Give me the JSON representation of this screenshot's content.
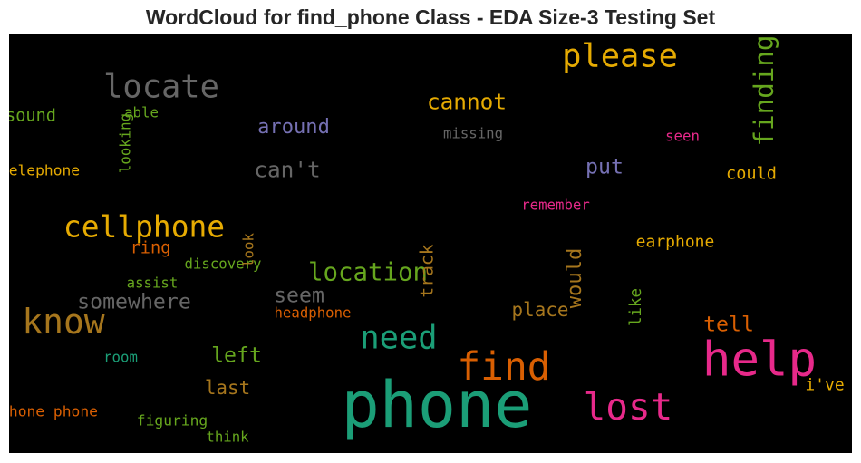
{
  "figure": {
    "title": "WordCloud for find_phone Class - EDA Size-3 Testing Set"
  },
  "chart_data": {
    "type": "wordcloud",
    "title": "WordCloud for find_phone Class - EDA Size-3 Testing Set",
    "background": "#000000",
    "words": [
      {
        "text": "phone",
        "weight": 1.0,
        "color": "#1b9e77",
        "rotated": false
      },
      {
        "text": "help",
        "weight": 0.73,
        "color": "#e7298a",
        "rotated": false
      },
      {
        "text": "find",
        "weight": 0.58,
        "color": "#d95f02",
        "rotated": false
      },
      {
        "text": "lost",
        "weight": 0.55,
        "color": "#e7298a",
        "rotated": false
      },
      {
        "text": "know",
        "weight": 0.5,
        "color": "#a6761d",
        "rotated": false
      },
      {
        "text": "need",
        "weight": 0.46,
        "color": "#1b9e77",
        "rotated": false
      },
      {
        "text": "locate",
        "weight": 0.46,
        "color": "#666666",
        "rotated": false
      },
      {
        "text": "please",
        "weight": 0.46,
        "color": "#e6ab02",
        "rotated": false
      },
      {
        "text": "cellphone",
        "weight": 0.42,
        "color": "#e6ab02",
        "rotated": false
      },
      {
        "text": "finding",
        "weight": 0.36,
        "color": "#66a61e",
        "rotated": true
      },
      {
        "text": "location",
        "weight": 0.33,
        "color": "#66a61e",
        "rotated": false
      },
      {
        "text": "can't",
        "weight": 0.28,
        "color": "#666666",
        "rotated": false
      },
      {
        "text": "cannot",
        "weight": 0.28,
        "color": "#e6ab02",
        "rotated": false
      },
      {
        "text": "somewhere",
        "weight": 0.26,
        "color": "#666666",
        "rotated": false
      },
      {
        "text": "seem",
        "weight": 0.26,
        "color": "#666666",
        "rotated": false
      },
      {
        "text": "tell",
        "weight": 0.26,
        "color": "#d95f02",
        "rotated": false
      },
      {
        "text": "left",
        "weight": 0.26,
        "color": "#66a61e",
        "rotated": false
      },
      {
        "text": "put",
        "weight": 0.26,
        "color": "#7570b3",
        "rotated": false
      },
      {
        "text": "around",
        "weight": 0.24,
        "color": "#7570b3",
        "rotated": false
      },
      {
        "text": "would",
        "weight": 0.24,
        "color": "#a6761d",
        "rotated": true
      },
      {
        "text": "last",
        "weight": 0.22,
        "color": "#a6761d",
        "rotated": false
      },
      {
        "text": "place",
        "weight": 0.22,
        "color": "#a6761d",
        "rotated": false
      },
      {
        "text": "track",
        "weight": 0.2,
        "color": "#a6761d",
        "rotated": true
      },
      {
        "text": "sound",
        "weight": 0.18,
        "color": "#66a61e",
        "rotated": false
      },
      {
        "text": "ring",
        "weight": 0.18,
        "color": "#d95f02",
        "rotated": false
      },
      {
        "text": "could",
        "weight": 0.18,
        "color": "#e6ab02",
        "rotated": false
      },
      {
        "text": "earphone",
        "weight": 0.17,
        "color": "#e6ab02",
        "rotated": false
      },
      {
        "text": "i've",
        "weight": 0.17,
        "color": "#e6ab02",
        "rotated": false
      },
      {
        "text": "like",
        "weight": 0.16,
        "color": "#66a61e",
        "rotated": true
      },
      {
        "text": "telephone",
        "weight": 0.14,
        "color": "#e6ab02",
        "rotated": false
      },
      {
        "text": "able",
        "weight": 0.13,
        "color": "#66a61e",
        "rotated": false
      },
      {
        "text": "looking",
        "weight": 0.13,
        "color": "#66a61e",
        "rotated": true
      },
      {
        "text": "missing",
        "weight": 0.13,
        "color": "#666666",
        "rotated": false
      },
      {
        "text": "seen",
        "weight": 0.13,
        "color": "#e7298a",
        "rotated": false
      },
      {
        "text": "remember",
        "weight": 0.13,
        "color": "#e7298a",
        "rotated": false
      },
      {
        "text": "discovery",
        "weight": 0.13,
        "color": "#66a61e",
        "rotated": false
      },
      {
        "text": "look",
        "weight": 0.13,
        "color": "#a6761d",
        "rotated": true
      },
      {
        "text": "assist",
        "weight": 0.13,
        "color": "#66a61e",
        "rotated": false
      },
      {
        "text": "headphone",
        "weight": 0.13,
        "color": "#d95f02",
        "rotated": false
      },
      {
        "text": "room",
        "weight": 0.13,
        "color": "#1b9e77",
        "rotated": false
      },
      {
        "text": "phone phone",
        "weight": 0.14,
        "color": "#d95f02",
        "rotated": false
      },
      {
        "text": "figuring",
        "weight": 0.14,
        "color": "#66a61e",
        "rotated": false
      },
      {
        "text": "think",
        "weight": 0.13,
        "color": "#66a61e",
        "rotated": false
      }
    ]
  }
}
